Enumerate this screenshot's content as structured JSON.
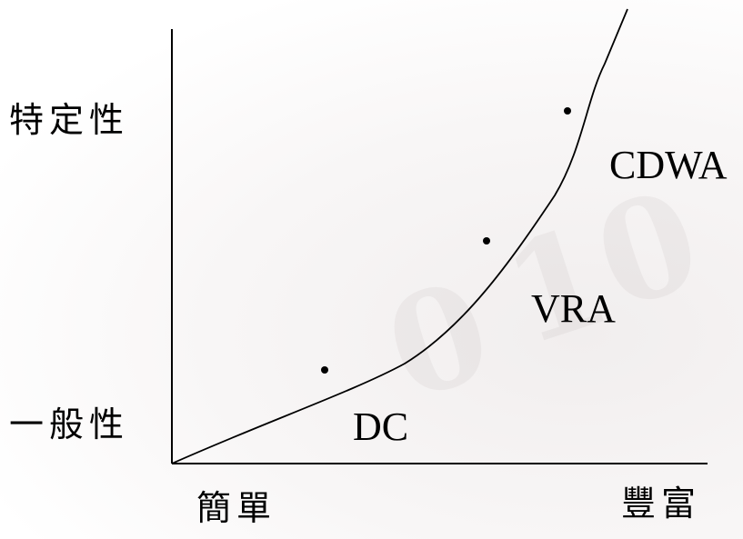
{
  "y_axis": {
    "top_label": "特定性",
    "bottom_label": "一般性"
  },
  "x_axis": {
    "left_label": "簡單",
    "right_label": "豐富"
  },
  "regions": [
    {
      "label": "DC"
    },
    {
      "label": "VRA"
    },
    {
      "label": "CDWA"
    }
  ],
  "colors": {
    "ink": "#000000",
    "background": "#ffffff"
  }
}
